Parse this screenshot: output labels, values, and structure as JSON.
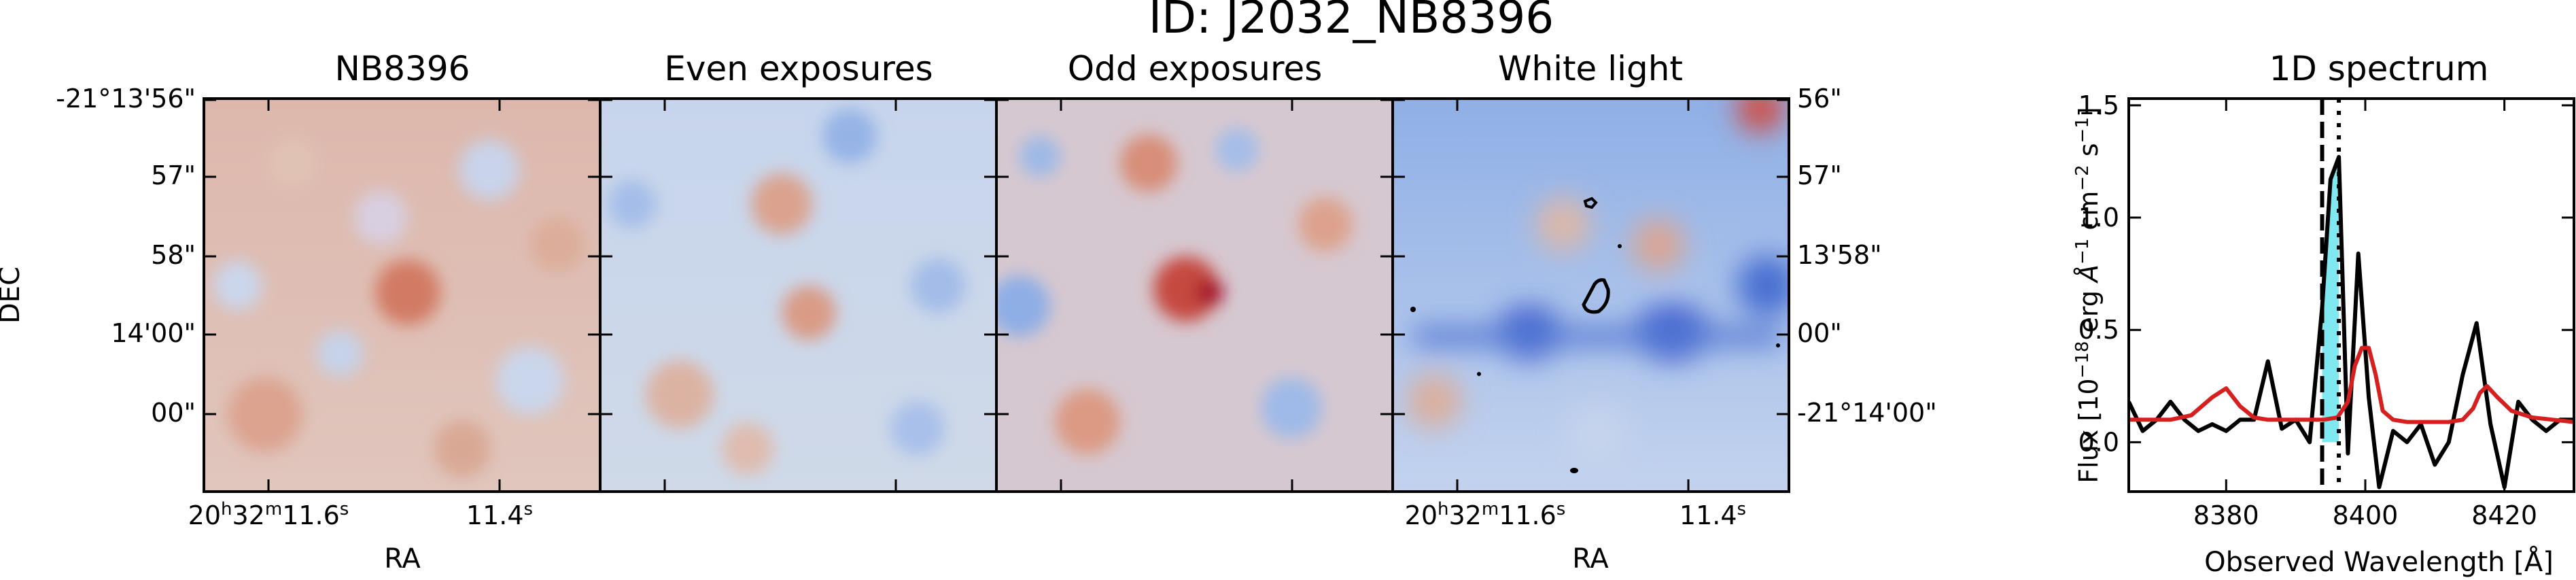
{
  "figure": {
    "title": "ID: J2032_NB8396"
  },
  "panels": [
    {
      "title": "NB8396",
      "dec_ticks": [
        "-21°13'56\"",
        "57\"",
        "58\"",
        "14'00\"",
        "00\""
      ],
      "ra_ticks": [
        "20h32m11.6s",
        "11.4s"
      ],
      "xlabel": "RA",
      "ylabel": "DEC"
    },
    {
      "title": "Even exposures"
    },
    {
      "title": "Odd exposures"
    },
    {
      "title": "White light",
      "dec_ticks_right": [
        "56\"",
        "57\"",
        "13'58\"",
        "00\"",
        "-21°14'00\""
      ],
      "ra_ticks": [
        "20h32m11.6s",
        "11.4s"
      ],
      "xlabel": "RA"
    }
  ],
  "chart_data": {
    "type": "line",
    "title": "1D spectrum",
    "xlabel": "Observed Wavelength [Å]",
    "ylabel": "Flux [10^-18 erg Å^-1 cm^-2 s^-1]",
    "xlim": [
      8366,
      8430
    ],
    "ylim": [
      -0.22,
      1.53
    ],
    "xticks": [
      8380,
      8400,
      8420
    ],
    "yticks": [
      0.0,
      0.5,
      1.0,
      1.5
    ],
    "vlines": [
      {
        "x": 8393.8,
        "style": "dashed"
      },
      {
        "x": 8396.2,
        "style": "dotted"
      }
    ],
    "highlight_band": {
      "x": [
        8393.8,
        8396.2
      ],
      "color": "#7fe8f0"
    },
    "series": [
      {
        "color": "#000000",
        "x": [
          8366,
          8368,
          8370,
          8372,
          8374,
          8376,
          8378,
          8380,
          8382,
          8384,
          8386,
          8388,
          8390,
          8392,
          8393.8,
          8395,
          8396.2,
          8397.5,
          8399,
          8400.5,
          8402,
          8404,
          8406,
          8408,
          8410,
          8412,
          8414,
          8416,
          8418,
          8420,
          8422,
          8424,
          8426,
          8428,
          8430
        ],
        "y": [
          0.18,
          0.05,
          0.1,
          0.18,
          0.1,
          0.05,
          0.08,
          0.05,
          0.1,
          0.1,
          0.36,
          0.06,
          0.1,
          0.0,
          0.6,
          1.17,
          1.27,
          -0.05,
          0.84,
          0.2,
          -0.2,
          0.05,
          0.0,
          0.08,
          -0.1,
          0.0,
          0.3,
          0.53,
          0.08,
          -0.2,
          0.18,
          0.1,
          0.05,
          0.1,
          0.1
        ]
      },
      {
        "color": "#d62020",
        "x": [
          8366,
          8372,
          8375,
          8378,
          8380,
          8382,
          8384,
          8386,
          8388,
          8390,
          8392,
          8394,
          8396,
          8397.5,
          8398.5,
          8399.5,
          8400.5,
          8401.5,
          8402.5,
          8404,
          8406,
          8408,
          8410,
          8412,
          8414,
          8415.5,
          8416.5,
          8417.5,
          8419,
          8421,
          8424,
          8427,
          8430
        ],
        "y": [
          0.1,
          0.1,
          0.12,
          0.2,
          0.24,
          0.16,
          0.11,
          0.1,
          0.1,
          0.1,
          0.1,
          0.1,
          0.11,
          0.18,
          0.34,
          0.42,
          0.42,
          0.3,
          0.14,
          0.1,
          0.09,
          0.09,
          0.09,
          0.09,
          0.1,
          0.15,
          0.22,
          0.25,
          0.2,
          0.14,
          0.11,
          0.1,
          0.09
        ]
      }
    ]
  }
}
